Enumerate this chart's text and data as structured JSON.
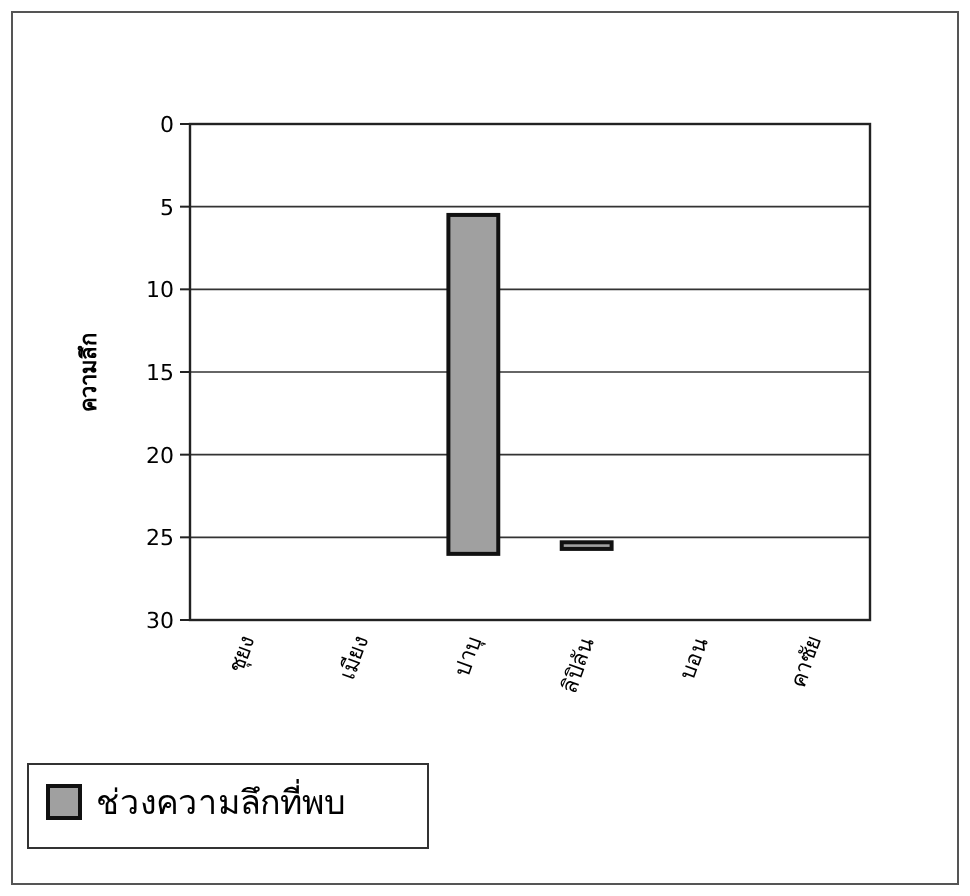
{
  "chart_data": {
    "type": "bar",
    "ylabel": "ความลึก",
    "categories": [
      "ชุยง",
      "เมียง",
      "ปาบุ",
      "ลิปิลัน",
      "บอน",
      "คาซัย"
    ],
    "series": [
      {
        "name": "ช่วงความลึกที่พบ",
        "color": "#a0a0a0",
        "values": [
          null,
          null,
          20.5,
          0.4,
          null,
          null
        ],
        "base": [
          null,
          null,
          5.5,
          25.3,
          null,
          null
        ]
      }
    ],
    "ylim": [
      30,
      0
    ],
    "yticks": [
      0,
      5,
      10,
      15,
      20,
      25,
      30
    ],
    "grid": "y",
    "legend": "bottom left"
  }
}
